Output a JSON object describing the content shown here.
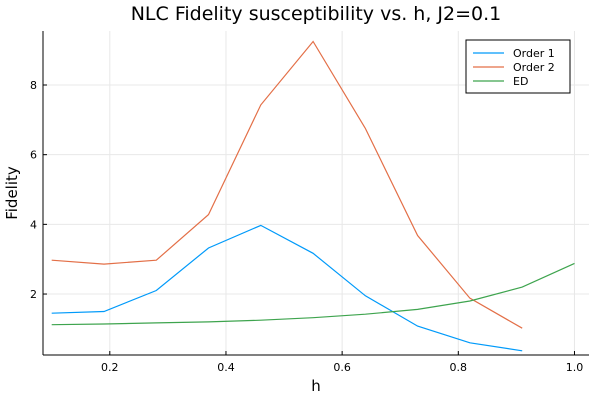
{
  "chart_data": {
    "type": "line",
    "title": "NLC Fidelity susceptibility vs. h, J2=0.1",
    "xlabel": "h",
    "ylabel": "Fidelity",
    "xlim": [
      0.085,
      1.025
    ],
    "ylim": [
      0.25,
      9.55
    ],
    "xticks": [
      0.2,
      0.4,
      0.6,
      0.8,
      1.0
    ],
    "xtick_labels": [
      "0.2",
      "0.4",
      "0.6",
      "0.8",
      "1.0"
    ],
    "yticks": [
      2,
      4,
      6,
      8
    ],
    "ytick_labels": [
      "2",
      "4",
      "6",
      "8"
    ],
    "grid": true,
    "legend": "top-right",
    "series": [
      {
        "name": "Order 1",
        "color": "#009AFA",
        "x": [
          0.1,
          0.19,
          0.28,
          0.37,
          0.46,
          0.55,
          0.64,
          0.73,
          0.82,
          0.91
        ],
        "y": [
          1.45,
          1.5,
          2.1,
          3.32,
          3.97,
          3.17,
          1.95,
          1.08,
          0.6,
          0.37
        ]
      },
      {
        "name": "Order 2",
        "color": "#E36F47",
        "x": [
          0.1,
          0.19,
          0.28,
          0.37,
          0.46,
          0.55,
          0.64,
          0.73,
          0.82,
          0.91
        ],
        "y": [
          2.97,
          2.86,
          2.97,
          4.28,
          7.43,
          9.25,
          6.75,
          3.68,
          1.88,
          1.02
        ]
      },
      {
        "name": "ED",
        "color": "#3EA44E",
        "x": [
          0.1,
          0.19,
          0.28,
          0.37,
          0.46,
          0.55,
          0.64,
          0.73,
          0.82,
          0.91,
          1.0
        ],
        "y": [
          1.12,
          1.14,
          1.17,
          1.2,
          1.25,
          1.32,
          1.42,
          1.56,
          1.8,
          2.2,
          2.88
        ]
      }
    ]
  }
}
